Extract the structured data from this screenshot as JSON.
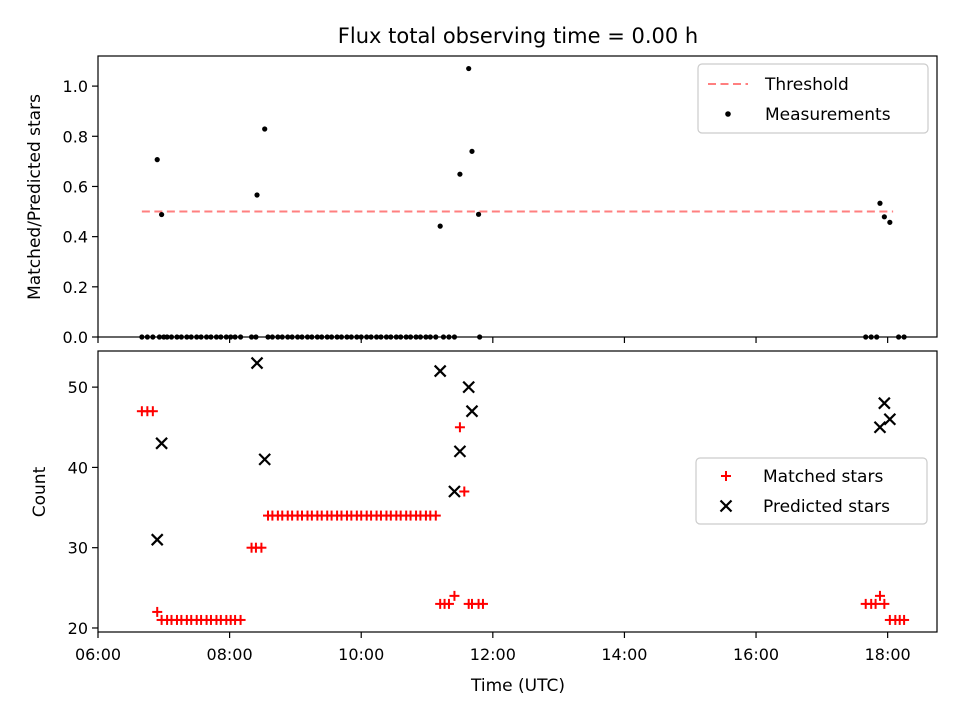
{
  "title": "Flux total observing time = 0.00 h",
  "chart_data": [
    {
      "type": "scatter",
      "ylabel": "Matched/Predicted stars",
      "xlim": [
        "06:00",
        "18:45"
      ],
      "ylim": [
        0,
        1.12
      ],
      "yticks": [
        0.0,
        0.2,
        0.4,
        0.6,
        0.8,
        1.0
      ],
      "ytick_labels": [
        "0.0",
        "0.2",
        "0.4",
        "0.6",
        "0.8",
        "1.0"
      ],
      "legend_position": "top-right",
      "threshold": {
        "name": "Threshold",
        "value": 0.5,
        "x_start": "06:40",
        "x_end": "18:05",
        "color": "#ff7f7f"
      },
      "series": [
        {
          "name": "Measurements",
          "marker": "dot",
          "color": "#000000",
          "x": [
            "06:40",
            "06:45",
            "06:50",
            "06:54",
            "06:58",
            "07:03",
            "07:07",
            "07:12",
            "07:16",
            "07:21",
            "07:25",
            "07:30",
            "07:34",
            "07:39",
            "07:43",
            "07:48",
            "07:52",
            "07:57",
            "08:01",
            "08:05",
            "08:10",
            "08:20",
            "08:24",
            "08:35",
            "08:39",
            "08:44",
            "08:48",
            "08:53",
            "08:57",
            "09:02",
            "09:06",
            "09:11",
            "09:15",
            "09:20",
            "09:24",
            "09:29",
            "09:33",
            "09:38",
            "09:42",
            "09:47",
            "09:51",
            "09:56",
            "10:00",
            "10:05",
            "10:09",
            "10:14",
            "10:18",
            "10:23",
            "10:27",
            "10:32",
            "10:36",
            "10:41",
            "10:45",
            "10:50",
            "10:54",
            "10:59",
            "11:03",
            "11:08",
            "11:15",
            "11:20",
            "11:25",
            "11:48",
            "17:40",
            "17:45",
            "17:50",
            "18:10",
            "18:15",
            "06:56",
            "07:00",
            "08:25",
            "08:32",
            "11:12",
            "11:30",
            "11:38",
            "11:41",
            "11:47",
            "17:53",
            "17:57",
            "18:02"
          ],
          "y": [
            0,
            0,
            0,
            0.707,
            0.488,
            0,
            0,
            0,
            0,
            0,
            0,
            0,
            0,
            0,
            0,
            0,
            0,
            0,
            0,
            0,
            0,
            0,
            0,
            0,
            0,
            0,
            0,
            0,
            0,
            0,
            0,
            0,
            0,
            0,
            0,
            0,
            0,
            0,
            0,
            0,
            0,
            0,
            0,
            0,
            0,
            0,
            0,
            0,
            0,
            0,
            0,
            0,
            0,
            0,
            0,
            0,
            0,
            0,
            0,
            0,
            0,
            0,
            0,
            0,
            0,
            0,
            0,
            0,
            0,
            0.566,
            0.829,
            0.442,
            0.649,
            1.07,
            0.74,
            0.489,
            0.533,
            0.479,
            0.457
          ]
        }
      ]
    },
    {
      "type": "scatter",
      "xlabel": "Time (UTC)",
      "ylabel": "Count",
      "xlim": [
        "06:00",
        "18:45"
      ],
      "ylim": [
        19.5,
        54.5
      ],
      "xticks": [
        "06:00",
        "08:00",
        "10:00",
        "12:00",
        "14:00",
        "16:00",
        "18:00"
      ],
      "yticks": [
        20,
        30,
        40,
        50
      ],
      "ytick_labels": [
        "20",
        "30",
        "40",
        "50"
      ],
      "legend_position": "center-right",
      "series": [
        {
          "name": "Matched stars",
          "marker": "plus",
          "color": "#ff0000",
          "x": [
            "06:40",
            "06:45",
            "06:50",
            "06:54",
            "06:58",
            "07:03",
            "07:07",
            "07:12",
            "07:16",
            "07:21",
            "07:25",
            "07:30",
            "07:34",
            "07:39",
            "07:43",
            "07:48",
            "07:52",
            "07:57",
            "08:01",
            "08:05",
            "08:10",
            "08:20",
            "08:24",
            "08:29",
            "08:35",
            "08:39",
            "08:44",
            "08:48",
            "08:53",
            "08:57",
            "09:02",
            "09:06",
            "09:11",
            "09:15",
            "09:20",
            "09:24",
            "09:29",
            "09:33",
            "09:38",
            "09:42",
            "09:47",
            "09:51",
            "09:56",
            "10:00",
            "10:05",
            "10:09",
            "10:14",
            "10:18",
            "10:23",
            "10:27",
            "10:32",
            "10:36",
            "10:41",
            "10:45",
            "10:50",
            "10:54",
            "10:59",
            "11:03",
            "11:08",
            "11:12",
            "11:16",
            "11:20",
            "11:25",
            "11:30",
            "11:34",
            "11:38",
            "11:41",
            "11:47",
            "11:51",
            "17:40",
            "17:45",
            "17:49",
            "17:53",
            "17:57",
            "18:02",
            "18:07",
            "18:11",
            "18:15"
          ],
          "y": [
            47,
            47,
            47,
            22,
            21,
            21,
            21,
            21,
            21,
            21,
            21,
            21,
            21,
            21,
            21,
            21,
            21,
            21,
            21,
            21,
            21,
            30,
            30,
            30,
            34,
            34,
            34,
            34,
            34,
            34,
            34,
            34,
            34,
            34,
            34,
            34,
            34,
            34,
            34,
            34,
            34,
            34,
            34,
            34,
            34,
            34,
            34,
            34,
            34,
            34,
            34,
            34,
            34,
            34,
            34,
            34,
            34,
            34,
            34,
            23,
            23,
            23,
            24,
            45,
            37,
            23,
            23,
            23,
            23,
            23,
            23,
            23,
            24,
            23,
            21,
            21,
            21,
            21
          ]
        },
        {
          "name": "Predicted stars",
          "marker": "x",
          "color": "#000000",
          "x": [
            "06:54",
            "06:58",
            "08:25",
            "08:32",
            "11:12",
            "11:25",
            "11:30",
            "11:38",
            "11:41",
            "17:53",
            "17:57",
            "18:02"
          ],
          "y": [
            31,
            43,
            53,
            41,
            52,
            37,
            42,
            50,
            47,
            45,
            48,
            46
          ]
        }
      ]
    }
  ]
}
